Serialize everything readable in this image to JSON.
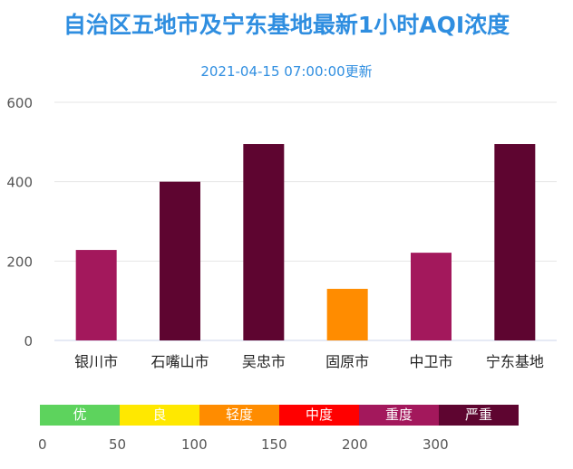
{
  "chart_data": {
    "type": "bar",
    "title": "自治区五地市及宁东基地最新1小时AQI浓度",
    "subtitle": "2021-04-15 07:00:00更新",
    "categories": [
      "银川市",
      "石嘴山市",
      "吴忠市",
      "固原市",
      "中卫市",
      "宁东基地"
    ],
    "values": [
      228,
      400,
      495,
      130,
      221,
      495
    ],
    "bar_colors": [
      "#a3185c",
      "#5e0530",
      "#5e0530",
      "#ff8c00",
      "#a3185c",
      "#5e0530"
    ],
    "ylim": [
      0,
      600
    ],
    "yticks": [
      0,
      200,
      400,
      600
    ],
    "grid": true
  },
  "legend": {
    "levels": [
      {
        "label": "优",
        "color": "#5dd35d"
      },
      {
        "label": "良",
        "color": "#ffe800"
      },
      {
        "label": "轻度",
        "color": "#ff8c00"
      },
      {
        "label": "中度",
        "color": "#ff0000"
      },
      {
        "label": "重度",
        "color": "#a3185c"
      },
      {
        "label": "严重",
        "color": "#5e0530"
      }
    ],
    "thresholds": [
      "0",
      "50",
      "100",
      "150",
      "200",
      "300"
    ]
  }
}
